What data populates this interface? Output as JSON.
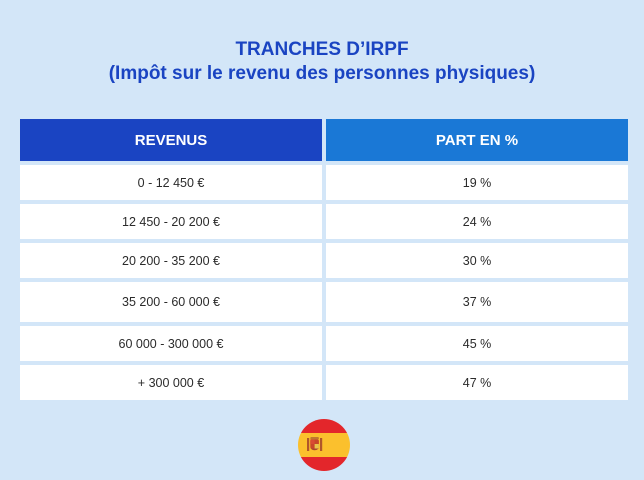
{
  "title": {
    "line1": "TRANCHES D’IRPF",
    "line2": "(Impôt sur le revenu des personnes physiques)"
  },
  "table": {
    "headers": [
      "REVENUS",
      "PART EN %"
    ],
    "rows": [
      {
        "revenus": "0 - 12 450 €",
        "part": "19 %"
      },
      {
        "revenus": "12 450 - 20 200 €",
        "part": "24 %"
      },
      {
        "revenus": "20 200 - 35 200 €",
        "part": "30 %"
      },
      {
        "revenus": "35 200 - 60 000 €",
        "part": "37 %"
      },
      {
        "revenus": "60 000 - 300 000 €",
        "part": "45 %"
      },
      {
        "revenus": "+ 300 000 €",
        "part": "47 %"
      }
    ]
  },
  "flag": {
    "icon": "spain-flag-icon",
    "colors": {
      "red": "#e3262b",
      "yellow": "#fbc02d"
    }
  },
  "colors": {
    "background": "#d3e6f8",
    "title": "#1a44c2",
    "header_1": "#1a44c2",
    "header_2": "#1a78d6"
  }
}
